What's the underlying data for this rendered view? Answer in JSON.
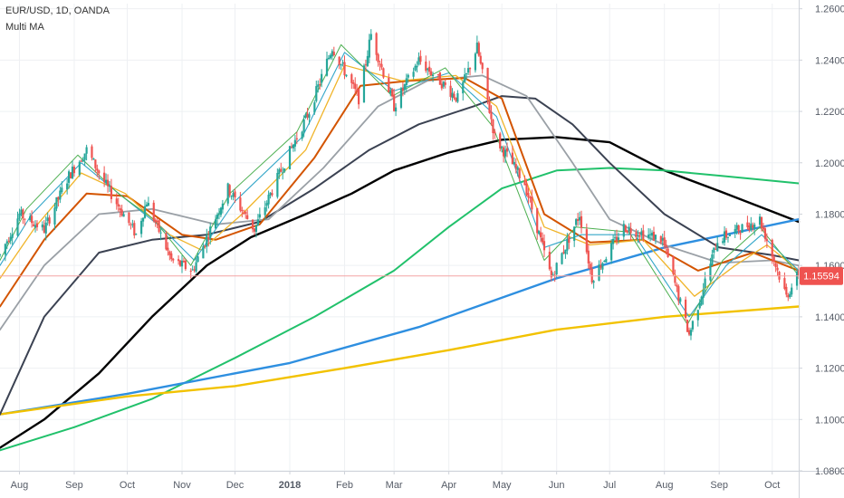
{
  "header": {
    "symbol_line": "EUR/USD, 1D, OANDA",
    "indicator": "Multi MA"
  },
  "colors": {
    "background": "#ffffff",
    "grid": "#eef0f3",
    "axis_line": "#cfd3da",
    "axis_text": "#555b66",
    "candle_up": "#26a69a",
    "candle_down": "#ef5350",
    "price_line": "#f4a3a3",
    "price_tag_bg": "#ef5350",
    "price_tag_text": "#ffffff"
  },
  "chart_data": {
    "type": "line",
    "title": "",
    "xlabel": "",
    "ylabel": "",
    "x_range": [
      "2017-07-21",
      "2018-10-16"
    ],
    "ylim": [
      1.08,
      1.262
    ],
    "yticks": [
      "1.26000",
      "1.24000",
      "1.22000",
      "1.20000",
      "1.18000",
      "1.16000",
      "1.14000",
      "1.12000",
      "1.10000",
      "1.08000"
    ],
    "xticks": [
      {
        "label": "Aug",
        "date": "2017-08-01"
      },
      {
        "label": "Sep",
        "date": "2017-09-01"
      },
      {
        "label": "Oct",
        "date": "2017-10-01"
      },
      {
        "label": "Nov",
        "date": "2017-11-01"
      },
      {
        "label": "Dec",
        "date": "2017-12-01"
      },
      {
        "label": "2018",
        "date": "2018-01-01",
        "bold": true
      },
      {
        "label": "Feb",
        "date": "2018-02-01"
      },
      {
        "label": "Mar",
        "date": "2018-03-01"
      },
      {
        "label": "Apr",
        "date": "2018-04-01"
      },
      {
        "label": "May",
        "date": "2018-05-01"
      },
      {
        "label": "Jun",
        "date": "2018-06-01"
      },
      {
        "label": "Jul",
        "date": "2018-07-01"
      },
      {
        "label": "Aug",
        "date": "2018-08-01"
      },
      {
        "label": "Sep",
        "date": "2018-09-01"
      },
      {
        "label": "Oct",
        "date": "2018-10-01"
      }
    ],
    "current_price": {
      "label": "1.15594",
      "value": 1.15594
    },
    "grid": true,
    "price_path": [
      [
        "2017-07-21",
        1.164
      ],
      [
        "2017-08-01",
        1.18
      ],
      [
        "2017-08-15",
        1.174
      ],
      [
        "2017-08-29",
        1.195
      ],
      [
        "2017-09-08",
        1.205
      ],
      [
        "2017-09-20",
        1.19
      ],
      [
        "2017-10-06",
        1.172
      ],
      [
        "2017-10-12",
        1.185
      ],
      [
        "2017-10-26",
        1.162
      ],
      [
        "2017-11-07",
        1.158
      ],
      [
        "2017-11-27",
        1.19
      ],
      [
        "2017-12-12",
        1.174
      ],
      [
        "2017-12-29",
        1.2
      ],
      [
        "2018-01-12",
        1.22
      ],
      [
        "2018-01-25",
        1.245
      ],
      [
        "2018-02-09",
        1.225
      ],
      [
        "2018-02-16",
        1.25
      ],
      [
        "2018-03-01",
        1.222
      ],
      [
        "2018-03-15",
        1.24
      ],
      [
        "2018-04-06",
        1.225
      ],
      [
        "2018-04-17",
        1.245
      ],
      [
        "2018-04-27",
        1.21
      ],
      [
        "2018-05-14",
        1.192
      ],
      [
        "2018-05-29",
        1.155
      ],
      [
        "2018-06-14",
        1.18
      ],
      [
        "2018-06-21",
        1.155
      ],
      [
        "2018-07-09",
        1.175
      ],
      [
        "2018-07-31",
        1.17
      ],
      [
        "2018-08-15",
        1.133
      ],
      [
        "2018-08-31",
        1.17
      ],
      [
        "2018-09-24",
        1.178
      ],
      [
        "2018-10-09",
        1.148
      ],
      [
        "2018-10-16",
        1.157
      ]
    ],
    "series": [
      {
        "color": "#000000",
        "width": 2.4,
        "points": [
          [
            "2017-07-21",
            1.089
          ],
          [
            "2017-08-15",
            1.1
          ],
          [
            "2017-09-15",
            1.118
          ],
          [
            "2017-10-15",
            1.14
          ],
          [
            "2017-11-15",
            1.16
          ],
          [
            "2017-12-10",
            1.171
          ],
          [
            "2018-01-10",
            1.18
          ],
          [
            "2018-02-05",
            1.188
          ],
          [
            "2018-03-01",
            1.197
          ],
          [
            "2018-04-01",
            1.204
          ],
          [
            "2018-05-01",
            1.209
          ],
          [
            "2018-06-01",
            1.21
          ],
          [
            "2018-07-01",
            1.208
          ],
          [
            "2018-08-01",
            1.197
          ],
          [
            "2018-09-01",
            1.189
          ],
          [
            "2018-10-01",
            1.181
          ],
          [
            "2018-10-16",
            1.177
          ]
        ]
      },
      {
        "color": "#21c16b",
        "width": 2,
        "points": [
          [
            "2017-07-21",
            1.088
          ],
          [
            "2017-09-01",
            1.097
          ],
          [
            "2017-10-15",
            1.108
          ],
          [
            "2017-12-01",
            1.124
          ],
          [
            "2018-01-15",
            1.14
          ],
          [
            "2018-03-01",
            1.158
          ],
          [
            "2018-04-01",
            1.175
          ],
          [
            "2018-05-01",
            1.19
          ],
          [
            "2018-06-01",
            1.197
          ],
          [
            "2018-07-01",
            1.198
          ],
          [
            "2018-08-01",
            1.197
          ],
          [
            "2018-09-01",
            1.195
          ],
          [
            "2018-10-01",
            1.193
          ],
          [
            "2018-10-16",
            1.192
          ]
        ]
      },
      {
        "color": "#2e8fe0",
        "width": 2.4,
        "points": [
          [
            "2017-07-21",
            1.102
          ],
          [
            "2017-10-01",
            1.11
          ],
          [
            "2018-01-01",
            1.122
          ],
          [
            "2018-03-15",
            1.136
          ],
          [
            "2018-06-01",
            1.155
          ],
          [
            "2018-08-01",
            1.167
          ],
          [
            "2018-10-16",
            1.178
          ]
        ]
      },
      {
        "color": "#f2c200",
        "width": 2.4,
        "points": [
          [
            "2017-07-21",
            1.102
          ],
          [
            "2017-10-01",
            1.109
          ],
          [
            "2017-12-01",
            1.113
          ],
          [
            "2018-02-01",
            1.12
          ],
          [
            "2018-04-01",
            1.127
          ],
          [
            "2018-06-01",
            1.135
          ],
          [
            "2018-08-01",
            1.14
          ],
          [
            "2018-10-16",
            1.144
          ]
        ]
      },
      {
        "color": "#3b4252",
        "width": 2,
        "points": [
          [
            "2017-07-21",
            1.102
          ],
          [
            "2017-08-15",
            1.14
          ],
          [
            "2017-09-15",
            1.165
          ],
          [
            "2017-10-15",
            1.17
          ],
          [
            "2017-11-15",
            1.172
          ],
          [
            "2017-12-15",
            1.177
          ],
          [
            "2018-01-15",
            1.19
          ],
          [
            "2018-02-15",
            1.205
          ],
          [
            "2018-03-15",
            1.215
          ],
          [
            "2018-04-15",
            1.222
          ],
          [
            "2018-05-01",
            1.226
          ],
          [
            "2018-05-20",
            1.225
          ],
          [
            "2018-06-10",
            1.215
          ],
          [
            "2018-07-01",
            1.2
          ],
          [
            "2018-08-01",
            1.18
          ],
          [
            "2018-09-01",
            1.167
          ],
          [
            "2018-10-01",
            1.164
          ],
          [
            "2018-10-16",
            1.162
          ]
        ]
      },
      {
        "color": "#9aa0a6",
        "width": 1.8,
        "points": [
          [
            "2017-07-21",
            1.135
          ],
          [
            "2017-08-15",
            1.16
          ],
          [
            "2017-09-15",
            1.18
          ],
          [
            "2017-10-15",
            1.182
          ],
          [
            "2017-11-20",
            1.176
          ],
          [
            "2017-12-20",
            1.178
          ],
          [
            "2018-01-20",
            1.198
          ],
          [
            "2018-02-20",
            1.222
          ],
          [
            "2018-03-20",
            1.232
          ],
          [
            "2018-04-20",
            1.234
          ],
          [
            "2018-05-15",
            1.226
          ],
          [
            "2018-06-10",
            1.2
          ],
          [
            "2018-07-01",
            1.178
          ],
          [
            "2018-08-01",
            1.168
          ],
          [
            "2018-09-01",
            1.161
          ],
          [
            "2018-10-01",
            1.162
          ],
          [
            "2018-10-16",
            1.16
          ]
        ]
      },
      {
        "color": "#d35400",
        "width": 2,
        "points": [
          [
            "2017-07-21",
            1.144
          ],
          [
            "2017-08-15",
            1.17
          ],
          [
            "2017-09-08",
            1.188
          ],
          [
            "2017-10-01",
            1.187
          ],
          [
            "2017-11-01",
            1.172
          ],
          [
            "2017-11-20",
            1.17
          ],
          [
            "2017-12-15",
            1.176
          ],
          [
            "2018-01-15",
            1.202
          ],
          [
            "2018-02-10",
            1.23
          ],
          [
            "2018-03-10",
            1.232
          ],
          [
            "2018-04-10",
            1.233
          ],
          [
            "2018-05-01",
            1.225
          ],
          [
            "2018-05-25",
            1.18
          ],
          [
            "2018-06-20",
            1.169
          ],
          [
            "2018-07-20",
            1.17
          ],
          [
            "2018-08-20",
            1.158
          ],
          [
            "2018-09-20",
            1.165
          ],
          [
            "2018-10-16",
            1.158
          ]
        ]
      },
      {
        "color": "#f0b429",
        "width": 1.3,
        "points": [
          [
            "2017-07-21",
            1.155
          ],
          [
            "2017-08-10",
            1.175
          ],
          [
            "2017-09-05",
            1.196
          ],
          [
            "2017-09-30",
            1.188
          ],
          [
            "2017-10-25",
            1.172
          ],
          [
            "2017-11-12",
            1.166
          ],
          [
            "2017-12-05",
            1.18
          ],
          [
            "2018-01-10",
            1.205
          ],
          [
            "2018-02-01",
            1.238
          ],
          [
            "2018-03-05",
            1.232
          ],
          [
            "2018-04-05",
            1.234
          ],
          [
            "2018-04-28",
            1.222
          ],
          [
            "2018-05-25",
            1.175
          ],
          [
            "2018-06-20",
            1.168
          ],
          [
            "2018-07-20",
            1.17
          ],
          [
            "2018-08-18",
            1.148
          ],
          [
            "2018-09-10",
            1.16
          ],
          [
            "2018-09-28",
            1.168
          ],
          [
            "2018-10-16",
            1.158
          ]
        ]
      },
      {
        "color": "#33a6c8",
        "width": 1.1,
        "points": [
          [
            "2017-07-21",
            1.16
          ],
          [
            "2017-08-08",
            1.18
          ],
          [
            "2017-09-05",
            1.2
          ],
          [
            "2017-09-28",
            1.187
          ],
          [
            "2017-10-20",
            1.175
          ],
          [
            "2017-11-08",
            1.162
          ],
          [
            "2017-12-01",
            1.185
          ],
          [
            "2018-01-08",
            1.21
          ],
          [
            "2018-02-01",
            1.243
          ],
          [
            "2018-03-01",
            1.228
          ],
          [
            "2018-04-01",
            1.235
          ],
          [
            "2018-04-28",
            1.218
          ],
          [
            "2018-05-25",
            1.167
          ],
          [
            "2018-06-15",
            1.172
          ],
          [
            "2018-07-15",
            1.172
          ],
          [
            "2018-08-15",
            1.14
          ],
          [
            "2018-09-05",
            1.16
          ],
          [
            "2018-09-25",
            1.172
          ],
          [
            "2018-10-16",
            1.158
          ]
        ]
      },
      {
        "color": "#4caf50",
        "width": 1,
        "points": [
          [
            "2017-07-21",
            1.162
          ],
          [
            "2017-08-05",
            1.182
          ],
          [
            "2017-09-03",
            1.203
          ],
          [
            "2017-09-26",
            1.188
          ],
          [
            "2017-10-16",
            1.178
          ],
          [
            "2017-11-06",
            1.16
          ],
          [
            "2017-11-28",
            1.188
          ],
          [
            "2018-01-05",
            1.212
          ],
          [
            "2018-01-30",
            1.246
          ],
          [
            "2018-02-28",
            1.226
          ],
          [
            "2018-03-30",
            1.237
          ],
          [
            "2018-04-26",
            1.214
          ],
          [
            "2018-05-25",
            1.162
          ],
          [
            "2018-06-12",
            1.175
          ],
          [
            "2018-07-12",
            1.173
          ],
          [
            "2018-08-14",
            1.137
          ],
          [
            "2018-09-03",
            1.162
          ],
          [
            "2018-09-24",
            1.175
          ],
          [
            "2018-10-16",
            1.156
          ]
        ]
      }
    ]
  }
}
